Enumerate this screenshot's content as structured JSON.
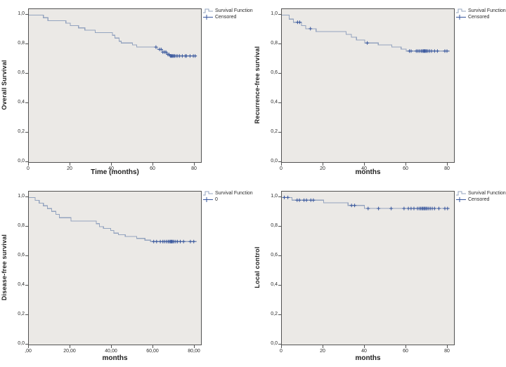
{
  "colors": {
    "curve": "#94a4bf",
    "censor": "#35549c",
    "plot_background": "#ebe9e6",
    "plot_border": "#525252",
    "text": "#1f1f1f"
  },
  "icons": {
    "survival_function": "step-line-glyph",
    "censored": "plus-glyph"
  },
  "chart_data": [
    {
      "type": "line",
      "subtype": "kaplan-meier-step",
      "title": "",
      "ylabel": "Overall Survival",
      "xlabel": "Time (months)",
      "legend": [
        "Survival Function",
        "Censored"
      ],
      "legend_position": "top-right-outside",
      "grid": false,
      "xlim": [
        0,
        83
      ],
      "ylim": [
        0,
        1.04
      ],
      "xticks": [
        "0",
        "20",
        "40",
        "60",
        "80"
      ],
      "xtick_values": [
        0,
        20,
        40,
        60,
        80
      ],
      "yticks": [
        "1,0",
        "0,8",
        "0,6",
        "0,4",
        "0,2",
        "0,0"
      ],
      "ytick_values": [
        1.0,
        0.8,
        0.6,
        0.4,
        0.2,
        0.0
      ],
      "steps": [
        [
          0,
          1.0
        ],
        [
          7,
          1.0
        ],
        [
          7,
          0.982
        ],
        [
          9.2,
          0.982
        ],
        [
          9.2,
          0.962
        ],
        [
          17.9,
          0.962
        ],
        [
          17.9,
          0.945
        ],
        [
          20,
          0.945
        ],
        [
          20,
          0.928
        ],
        [
          24,
          0.928
        ],
        [
          24,
          0.912
        ],
        [
          27,
          0.912
        ],
        [
          27,
          0.897
        ],
        [
          32,
          0.897
        ],
        [
          32,
          0.88
        ],
        [
          40.3,
          0.88
        ],
        [
          40.3,
          0.862
        ],
        [
          41.5,
          0.862
        ],
        [
          41.5,
          0.843
        ],
        [
          43.5,
          0.843
        ],
        [
          43.5,
          0.822
        ],
        [
          44.5,
          0.822
        ],
        [
          44.5,
          0.81
        ],
        [
          50,
          0.81
        ],
        [
          50,
          0.797
        ],
        [
          52,
          0.797
        ],
        [
          52,
          0.782
        ],
        [
          62,
          0.782
        ],
        [
          62,
          0.766
        ],
        [
          64.5,
          0.766
        ],
        [
          64.5,
          0.748
        ],
        [
          66.5,
          0.748
        ],
        [
          66.5,
          0.732
        ],
        [
          68,
          0.732
        ],
        [
          68,
          0.722
        ],
        [
          81,
          0.722
        ]
      ],
      "censored_x": [
        61.3,
        63,
        63.8,
        64.6,
        65.4,
        66.1,
        67,
        67.6,
        68.2,
        68.6,
        69,
        69.4,
        69.8,
        70.3,
        71,
        71.8,
        72.7,
        74,
        75.4,
        76,
        77.7,
        79.3,
        80.2
      ]
    },
    {
      "type": "line",
      "subtype": "kaplan-meier-step",
      "title": "",
      "ylabel": "Recurrence-free survival",
      "xlabel": "months",
      "legend": [
        "Survival Function",
        "Censored"
      ],
      "legend_position": "top-right-outside",
      "grid": false,
      "xlim": [
        0,
        83
      ],
      "ylim": [
        0,
        1.04
      ],
      "xticks": [
        "0",
        "20",
        "40",
        "60",
        "80"
      ],
      "xtick_values": [
        0,
        20,
        40,
        60,
        80
      ],
      "yticks": [
        "1,0",
        "0,8",
        "0,6",
        "0,4",
        "0,2",
        "0,0"
      ],
      "ytick_values": [
        1.0,
        0.8,
        0.6,
        0.4,
        0.2,
        0.0
      ],
      "steps": [
        [
          0,
          1.0
        ],
        [
          3.6,
          1.0
        ],
        [
          3.6,
          0.972
        ],
        [
          5.6,
          0.972
        ],
        [
          5.6,
          0.951
        ],
        [
          9.5,
          0.951
        ],
        [
          9.5,
          0.928
        ],
        [
          11.5,
          0.928
        ],
        [
          11.5,
          0.907
        ],
        [
          16.5,
          0.907
        ],
        [
          16.5,
          0.887
        ],
        [
          31,
          0.887
        ],
        [
          31,
          0.868
        ],
        [
          33.5,
          0.868
        ],
        [
          33.5,
          0.849
        ],
        [
          36,
          0.849
        ],
        [
          36,
          0.83
        ],
        [
          40,
          0.83
        ],
        [
          40,
          0.81
        ],
        [
          46.5,
          0.81
        ],
        [
          46.5,
          0.796
        ],
        [
          53,
          0.796
        ],
        [
          53,
          0.782
        ],
        [
          57.5,
          0.782
        ],
        [
          57.5,
          0.768
        ],
        [
          60,
          0.768
        ],
        [
          60,
          0.755
        ],
        [
          81,
          0.755
        ]
      ],
      "censored_x": [
        7.6,
        8.6,
        13.8,
        41.2,
        61.5,
        62.3,
        64.8,
        65.6,
        66.3,
        67.1,
        67.7,
        68.2,
        68.6,
        69,
        69.4,
        69.9,
        70.5,
        71.3,
        72.2,
        73.6,
        75,
        78.6,
        79.6
      ]
    },
    {
      "type": "line",
      "subtype": "kaplan-meier-step",
      "title": "",
      "ylabel": "Disease-free survival",
      "xlabel": "months",
      "legend": [
        "Survival Function",
        "0"
      ],
      "legend_position": "top-right-outside",
      "grid": false,
      "xlim": [
        0,
        83
      ],
      "ylim": [
        0,
        1.04
      ],
      "xticks": [
        ",00",
        "20,00",
        "40,00",
        "60,00",
        "80,00"
      ],
      "xtick_values": [
        0,
        20,
        40,
        60,
        80
      ],
      "yticks": [
        "1,0",
        "0,8",
        "0,6",
        "0,4",
        "0,2",
        "0,0"
      ],
      "ytick_values": [
        1.0,
        0.8,
        0.6,
        0.4,
        0.2,
        0.0
      ],
      "steps": [
        [
          0,
          1.0
        ],
        [
          3,
          1.0
        ],
        [
          3,
          0.981
        ],
        [
          5,
          0.981
        ],
        [
          5,
          0.962
        ],
        [
          7,
          0.962
        ],
        [
          7,
          0.943
        ],
        [
          9,
          0.943
        ],
        [
          9,
          0.924
        ],
        [
          11,
          0.924
        ],
        [
          11,
          0.905
        ],
        [
          13,
          0.905
        ],
        [
          13,
          0.885
        ],
        [
          14.7,
          0.885
        ],
        [
          14.7,
          0.862
        ],
        [
          20.3,
          0.862
        ],
        [
          20.3,
          0.84
        ],
        [
          32.5,
          0.84
        ],
        [
          32.5,
          0.822
        ],
        [
          34,
          0.822
        ],
        [
          34,
          0.801
        ],
        [
          36,
          0.801
        ],
        [
          36,
          0.79
        ],
        [
          39.5,
          0.79
        ],
        [
          39.5,
          0.775
        ],
        [
          41,
          0.775
        ],
        [
          41,
          0.757
        ],
        [
          43.2,
          0.757
        ],
        [
          43.2,
          0.746
        ],
        [
          46.5,
          0.746
        ],
        [
          46.5,
          0.735
        ],
        [
          52,
          0.735
        ],
        [
          52,
          0.722
        ],
        [
          56,
          0.722
        ],
        [
          56,
          0.71
        ],
        [
          58.7,
          0.71
        ],
        [
          58.7,
          0.7
        ],
        [
          81,
          0.7
        ]
      ],
      "censored_x": [
        60.2,
        61.6,
        63.4,
        64.6,
        65.4,
        66.3,
        67.1,
        67.7,
        68.2,
        68.6,
        69,
        69.4,
        70,
        70.8,
        71.7,
        73,
        74.6,
        77.9,
        79.5
      ]
    },
    {
      "type": "line",
      "subtype": "kaplan-meier-step",
      "title": "",
      "ylabel": "Local control",
      "xlabel": "months",
      "legend": [
        "Survival Function",
        "Censored"
      ],
      "legend_position": "top-right-outside",
      "grid": false,
      "xlim": [
        0,
        83
      ],
      "ylim": [
        0,
        1.04
      ],
      "xticks": [
        "0",
        "20",
        "40",
        "60",
        "80"
      ],
      "xtick_values": [
        0,
        20,
        40,
        60,
        80
      ],
      "yticks": [
        "1,0",
        "0,8",
        "0,6",
        "0,4",
        "0,2",
        "0,0"
      ],
      "ytick_values": [
        1.0,
        0.8,
        0.6,
        0.4,
        0.2,
        0.0
      ],
      "steps": [
        [
          0,
          1.0
        ],
        [
          4.9,
          1.0
        ],
        [
          4.9,
          0.982
        ],
        [
          20.2,
          0.982
        ],
        [
          20.2,
          0.964
        ],
        [
          31.9,
          0.964
        ],
        [
          31.9,
          0.946
        ],
        [
          39.8,
          0.946
        ],
        [
          39.8,
          0.925
        ],
        [
          81,
          0.925
        ]
      ],
      "censored_x": [
        1.2,
        2.9,
        7.4,
        8.5,
        10.7,
        11.9,
        14,
        15.2,
        33.6,
        35.1,
        41.6,
        46.6,
        52.7,
        58.9,
        61,
        62.3,
        63.7,
        65.4,
        66.2,
        66.9,
        67.5,
        68,
        68.5,
        69,
        69.5,
        70.1,
        70.8,
        71.6,
        72.5,
        73.6,
        75.7,
        78.6,
        79.9
      ]
    }
  ]
}
